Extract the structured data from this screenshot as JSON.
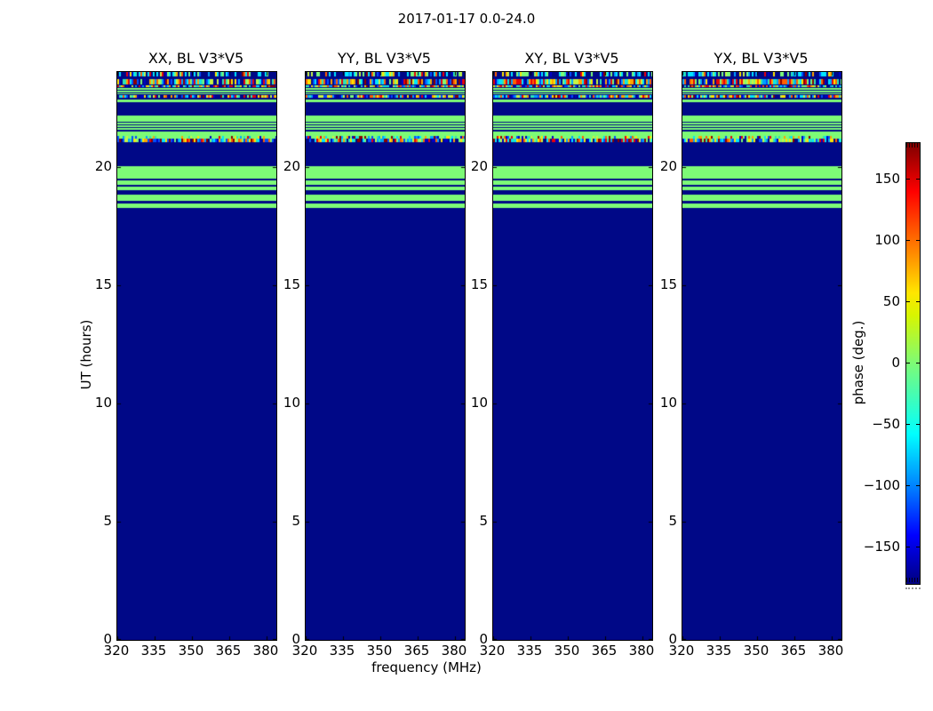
{
  "figure": {
    "title": "2017-01-17 0.0-24.0",
    "xlabel": "frequency (MHz)",
    "ylabel": "UT (hours)",
    "colorbar_label": "phase (deg.)"
  },
  "chart_data": {
    "type": "heatmap",
    "title": "2017-01-17 0.0-24.0",
    "subplot_titles": [
      "XX, BL V3*V5",
      "YY, BL V3*V5",
      "XY, BL V3*V5",
      "YX, BL V3*V5"
    ],
    "xlabel": "frequency (MHz)",
    "ylabel": "UT (hours)",
    "x_tick_labels": [
      "320",
      "335",
      "350",
      "365",
      "380"
    ],
    "x_tick_values": [
      320,
      335,
      350,
      365,
      380
    ],
    "x_range": [
      320,
      384
    ],
    "y_tick_labels": [
      "0",
      "5",
      "10",
      "15",
      "20"
    ],
    "y_tick_values": [
      0,
      5,
      10,
      15,
      20
    ],
    "y_range": [
      0,
      24
    ],
    "colorbar": {
      "label": "phase (deg.)",
      "tick_labels": [
        "150",
        "100",
        "50",
        "0",
        "−50",
        "−100",
        "−150"
      ],
      "tick_values": [
        150,
        100,
        50,
        0,
        -50,
        -100,
        -150
      ],
      "range": [
        -180,
        180
      ],
      "colormap": "jet"
    },
    "colors": {
      "background_phase_minus180": "#000887",
      "zero_phase_green": "#7dfb76",
      "noise_palette": [
        "#8b0000",
        "#e8000b",
        "#ff6000",
        "#ffa500",
        "#ffe600",
        "#c8f542",
        "#7dfb76",
        "#2ce6b4",
        "#00e5ff",
        "#00a2ff",
        "#0050ff",
        "#0000c8"
      ]
    },
    "bands_note": "Same pattern in all four subplots: solid -180 deg (navy) below UT 18.25; green (~0 deg) bands and noisy multicolor rows between UT 18.25 and 24.",
    "stripes": [
      {
        "f": 0.0,
        "h": 0.0078,
        "kind": "noise_sparse",
        "ut": 24.0
      },
      {
        "f": 0.0125,
        "h": 0.0094,
        "kind": "noise",
        "ut": 23.7
      },
      {
        "f": 0.0235,
        "h": 0.0039,
        "kind": "noise",
        "ut": 23.4
      },
      {
        "f": 0.0282,
        "h": 0.0031,
        "kind": "green",
        "ut": 23.3
      },
      {
        "f": 0.0329,
        "h": 0.0031,
        "kind": "green",
        "ut": 23.2
      },
      {
        "f": 0.0376,
        "h": 0.0023,
        "kind": "green",
        "ut": 23.1
      },
      {
        "f": 0.0407,
        "h": 0.0047,
        "kind": "noise",
        "ut": 23.0
      },
      {
        "f": 0.0485,
        "h": 0.0047,
        "kind": "green",
        "ut": 22.8
      },
      {
        "f": 0.0767,
        "h": 0.011,
        "kind": "green",
        "ut": 22.2
      },
      {
        "f": 0.0892,
        "h": 0.0031,
        "kind": "green",
        "ut": 21.9
      },
      {
        "f": 0.0939,
        "h": 0.0031,
        "kind": "green",
        "ut": 21.7
      },
      {
        "f": 0.0986,
        "h": 0.0031,
        "kind": "green",
        "ut": 21.6
      },
      {
        "f": 0.1048,
        "h": 0.0078,
        "kind": "green",
        "ut": 21.5
      },
      {
        "f": 0.1127,
        "h": 0.0047,
        "kind": "noise_green",
        "ut": 21.3
      },
      {
        "f": 0.1174,
        "h": 0.0063,
        "kind": "noise",
        "ut": 21.2
      },
      {
        "f": 0.1659,
        "h": 0.0219,
        "kind": "green",
        "ut": 20.0
      },
      {
        "f": 0.1909,
        "h": 0.0078,
        "kind": "green",
        "ut": 19.4
      },
      {
        "f": 0.2019,
        "h": 0.0063,
        "kind": "green",
        "ut": 19.2
      },
      {
        "f": 0.216,
        "h": 0.011,
        "kind": "green",
        "ut": 18.8
      },
      {
        "f": 0.2316,
        "h": 0.0078,
        "kind": "green",
        "ut": 18.4
      }
    ]
  }
}
